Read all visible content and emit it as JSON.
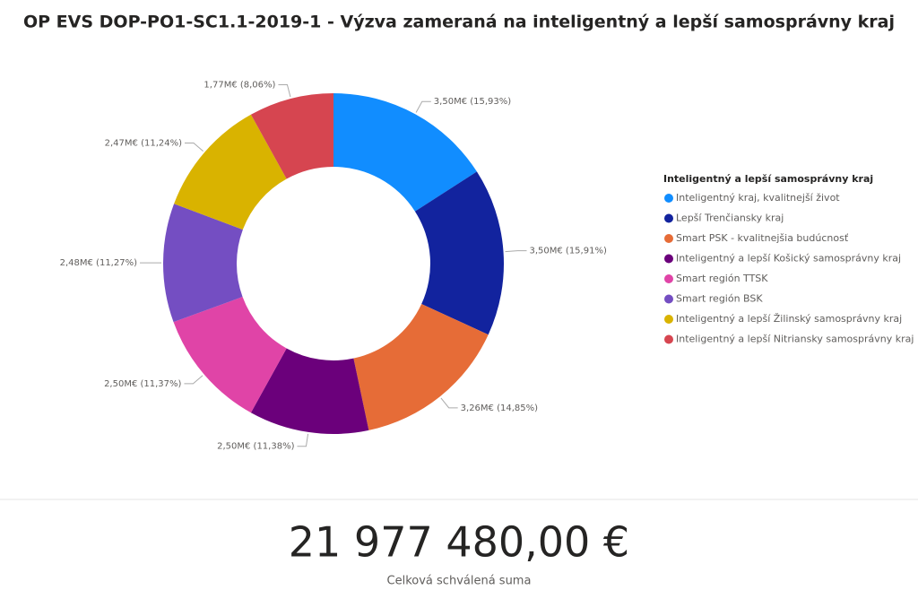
{
  "chart_data": {
    "type": "pie",
    "title": "OP EVS DOP-PO1-SC1.1-2019-1 - Výzva zameraná na inteligentný a lepší samosprávny kraj",
    "legend_title": "Inteligentný a lepší samosprávny kraj",
    "categories": [
      "Inteligentný kraj, kvalitnejší život",
      "Lepší Trenčiansky kraj",
      "Smart PSK - kvalitnejšia budúcnosť",
      "Inteligentný a lepší Košický samosprávny kraj",
      "Smart región TTSK",
      "Smart región BSK",
      "Inteligentný a lepší Žilinský samosprávny kraj",
      "Inteligentný a lepší Nitriansky samosprávny kraj"
    ],
    "values": [
      3.5,
      3.5,
      3.26,
      2.5,
      2.5,
      2.48,
      2.47,
      1.77
    ],
    "value_labels": [
      "3,50M€ (15,93%)",
      "3,50M€ (15,91%)",
      "3,26M€ (14,85%)",
      "2,50M€ (11,38%)",
      "2,50M€ (11,37%)",
      "2,48M€ (11,27%)",
      "2,47M€ (11,24%)",
      "1,77M€ (8,06%)"
    ],
    "colors": [
      "#118DFF",
      "#12239E",
      "#E66C37",
      "#6B007B",
      "#E044A7",
      "#744EC2",
      "#D9B300",
      "#D64550"
    ],
    "donut": true,
    "legend": "right"
  },
  "card": {
    "value": "21 977 480,00 €",
    "caption": "Celková schválená suma"
  }
}
